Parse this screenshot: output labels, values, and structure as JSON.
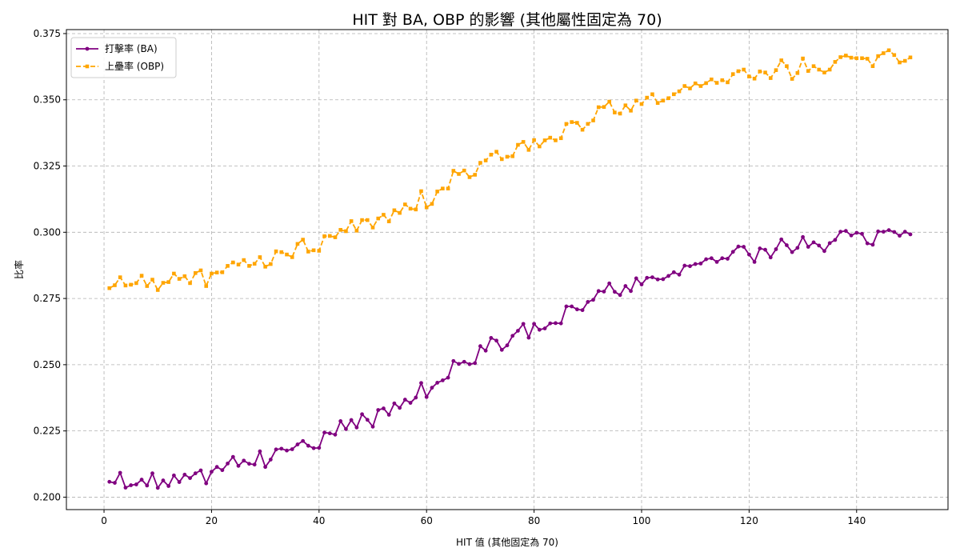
{
  "chart_data": {
    "type": "line",
    "title": "HIT 對 BA, OBP 的影響 (其他屬性固定為 70)",
    "xlabel": "HIT 值 (其他固定為 70)",
    "ylabel": "比率",
    "xlim": [
      -7,
      157
    ],
    "ylim": [
      0.1953,
      0.3765
    ],
    "xticks": [
      0,
      20,
      40,
      60,
      80,
      100,
      120,
      140
    ],
    "xtick_labels": [
      "0",
      "20",
      "40",
      "60",
      "80",
      "100",
      "120",
      "140"
    ],
    "yticks": [
      0.2,
      0.225,
      0.25,
      0.275,
      0.3,
      0.325,
      0.35,
      0.375
    ],
    "ytick_labels": [
      "0.200",
      "0.225",
      "0.250",
      "0.275",
      "0.300",
      "0.325",
      "0.350",
      "0.375"
    ],
    "grid": true,
    "legend_position": "upper-left",
    "x": [
      1,
      2,
      3,
      4,
      5,
      6,
      7,
      8,
      9,
      10,
      11,
      12,
      13,
      14,
      15,
      16,
      17,
      18,
      19,
      20,
      21,
      22,
      23,
      24,
      25,
      26,
      27,
      28,
      29,
      30,
      31,
      32,
      33,
      34,
      35,
      36,
      37,
      38,
      39,
      40,
      41,
      42,
      43,
      44,
      45,
      46,
      47,
      48,
      49,
      50,
      51,
      52,
      53,
      54,
      55,
      56,
      57,
      58,
      59,
      60,
      61,
      62,
      63,
      64,
      65,
      66,
      67,
      68,
      69,
      70,
      71,
      72,
      73,
      74,
      75,
      76,
      77,
      78,
      79,
      80,
      81,
      82,
      83,
      84,
      85,
      86,
      87,
      88,
      89,
      90,
      91,
      92,
      93,
      94,
      95,
      96,
      97,
      98,
      99,
      100,
      101,
      102,
      103,
      104,
      105,
      106,
      107,
      108,
      109,
      110,
      111,
      112,
      113,
      114,
      115,
      116,
      117,
      118,
      119,
      120,
      121,
      122,
      123,
      124,
      125,
      126,
      127,
      128,
      129,
      130,
      131,
      132,
      133,
      134,
      135,
      136,
      137,
      138,
      139,
      140,
      141,
      142,
      143,
      144,
      145,
      146,
      147,
      148,
      149,
      150
    ],
    "series": [
      {
        "name": "打擊率 (BA)",
        "color": "#800080",
        "linestyle": "solid",
        "marker": "circle",
        "values": [
          0.2058,
          0.2054,
          0.2092,
          0.2036,
          0.2045,
          0.2048,
          0.2066,
          0.2044,
          0.209,
          0.2035,
          0.2063,
          0.2042,
          0.2082,
          0.2057,
          0.2085,
          0.2072,
          0.209,
          0.2101,
          0.2052,
          0.2096,
          0.2114,
          0.2102,
          0.2127,
          0.2152,
          0.2118,
          0.2138,
          0.2126,
          0.2123,
          0.2173,
          0.2114,
          0.2142,
          0.218,
          0.2183,
          0.2176,
          0.2181,
          0.2199,
          0.2212,
          0.2194,
          0.2185,
          0.2186,
          0.2244,
          0.2241,
          0.2236,
          0.2287,
          0.2257,
          0.2291,
          0.2263,
          0.2313,
          0.2292,
          0.2266,
          0.2329,
          0.2335,
          0.2311,
          0.2354,
          0.2337,
          0.2368,
          0.2356,
          0.2376,
          0.2431,
          0.2378,
          0.2413,
          0.2432,
          0.2441,
          0.2451,
          0.2514,
          0.2503,
          0.2511,
          0.2502,
          0.2506,
          0.257,
          0.2553,
          0.2601,
          0.2591,
          0.2556,
          0.2573,
          0.2609,
          0.2628,
          0.2654,
          0.2602,
          0.2654,
          0.2632,
          0.2637,
          0.2656,
          0.2657,
          0.2656,
          0.272,
          0.272,
          0.2709,
          0.2706,
          0.2737,
          0.2745,
          0.2778,
          0.2776,
          0.2807,
          0.2775,
          0.2763,
          0.2797,
          0.2778,
          0.2826,
          0.2803,
          0.2828,
          0.283,
          0.2822,
          0.2823,
          0.2835,
          0.2849,
          0.284,
          0.2874,
          0.2872,
          0.288,
          0.2882,
          0.2898,
          0.2902,
          0.2888,
          0.2902,
          0.29,
          0.2926,
          0.2946,
          0.2945,
          0.2916,
          0.2888,
          0.2939,
          0.2934,
          0.2905,
          0.2936,
          0.2973,
          0.2951,
          0.2925,
          0.2941,
          0.2982,
          0.2945,
          0.2962,
          0.295,
          0.2929,
          0.2959,
          0.2971,
          0.3002,
          0.3005,
          0.2988,
          0.2998,
          0.2994,
          0.2958,
          0.2953,
          0.3003,
          0.3002,
          0.3008,
          0.3001,
          0.2987,
          0.3002,
          0.2992
        ]
      },
      {
        "name": "上壘率 (OBP)",
        "color": "#FFA500",
        "linestyle": "dashed",
        "marker": "square",
        "values": [
          0.2789,
          0.28,
          0.283,
          0.2799,
          0.2802,
          0.2808,
          0.2836,
          0.2797,
          0.2821,
          0.2782,
          0.2809,
          0.2812,
          0.2844,
          0.2824,
          0.2834,
          0.2808,
          0.2846,
          0.2856,
          0.2797,
          0.2844,
          0.2848,
          0.2849,
          0.2873,
          0.2886,
          0.2878,
          0.2895,
          0.2873,
          0.2881,
          0.2906,
          0.287,
          0.288,
          0.2928,
          0.2925,
          0.2916,
          0.2906,
          0.2956,
          0.2972,
          0.2927,
          0.2932,
          0.293,
          0.2985,
          0.2986,
          0.2981,
          0.3009,
          0.3004,
          0.3042,
          0.3006,
          0.3046,
          0.3046,
          0.3018,
          0.3052,
          0.3066,
          0.3041,
          0.3083,
          0.3073,
          0.3105,
          0.3089,
          0.3086,
          0.3155,
          0.3094,
          0.3107,
          0.3154,
          0.3165,
          0.3165,
          0.3232,
          0.322,
          0.3233,
          0.3208,
          0.3217,
          0.3262,
          0.3271,
          0.3293,
          0.3304,
          0.3276,
          0.3285,
          0.3287,
          0.333,
          0.3341,
          0.3311,
          0.3348,
          0.3324,
          0.3347,
          0.3357,
          0.3347,
          0.3355,
          0.3409,
          0.3416,
          0.3413,
          0.3387,
          0.3409,
          0.3422,
          0.3472,
          0.3473,
          0.3493,
          0.3452,
          0.3448,
          0.3479,
          0.3459,
          0.3497,
          0.3484,
          0.3508,
          0.3521,
          0.3488,
          0.3497,
          0.3506,
          0.3521,
          0.3532,
          0.3552,
          0.3543,
          0.3562,
          0.3552,
          0.3563,
          0.3577,
          0.3564,
          0.3574,
          0.3566,
          0.3597,
          0.3608,
          0.3614,
          0.3588,
          0.358,
          0.3607,
          0.3603,
          0.3582,
          0.3612,
          0.3649,
          0.3627,
          0.3579,
          0.3601,
          0.3656,
          0.3609,
          0.3627,
          0.3614,
          0.3603,
          0.3614,
          0.3643,
          0.3661,
          0.3667,
          0.3659,
          0.3657,
          0.3657,
          0.3655,
          0.3627,
          0.3665,
          0.3676,
          0.3687,
          0.3669,
          0.3641,
          0.3647,
          0.366
        ]
      }
    ]
  }
}
